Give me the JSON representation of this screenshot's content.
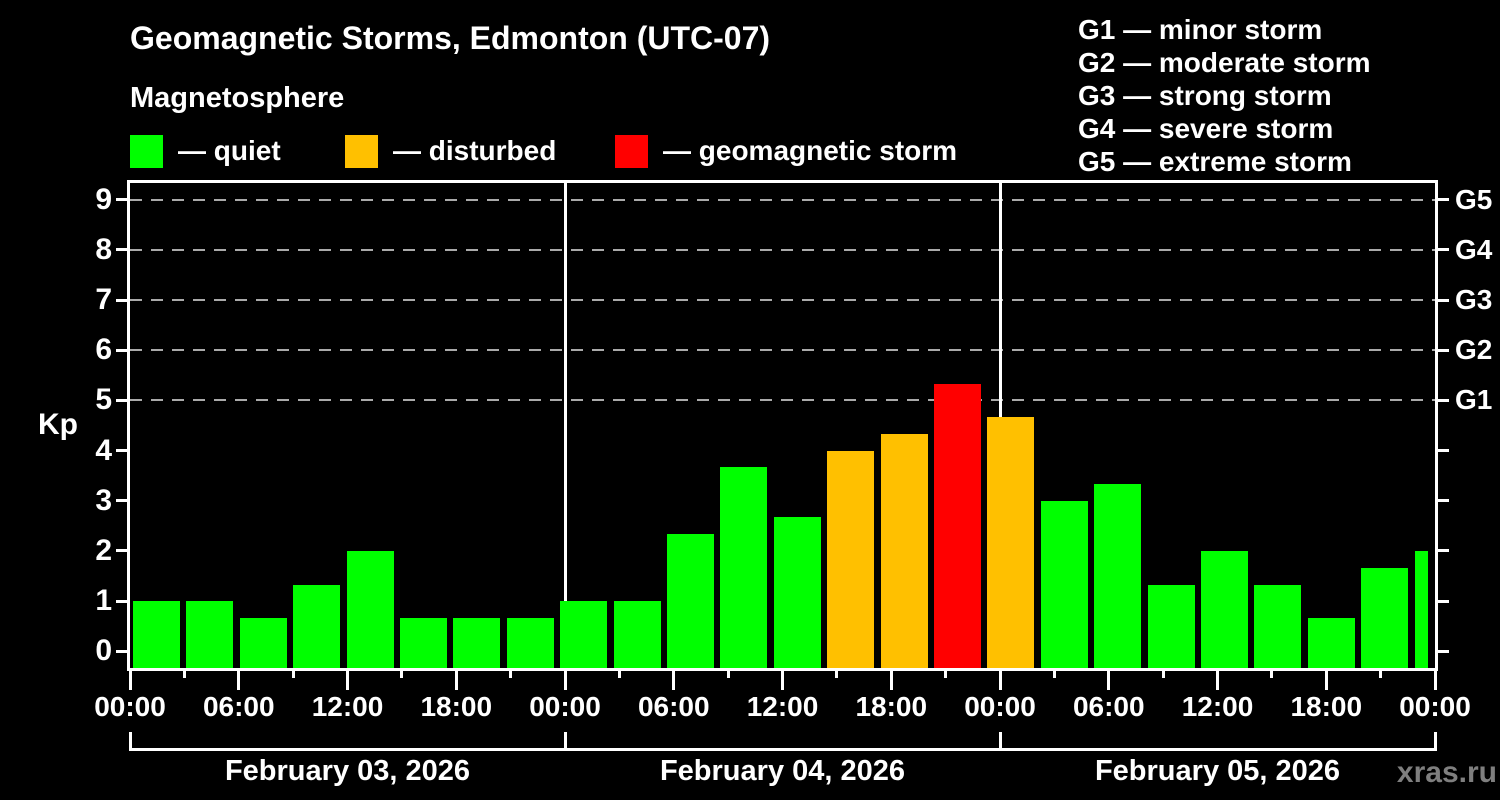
{
  "header": {
    "title": "Geomagnetic Storms, Edmonton (UTC-07)",
    "subtitle": "Magnetosphere"
  },
  "legend": {
    "items": [
      {
        "label": "— quiet",
        "status": "quiet",
        "color": "#00FF00"
      },
      {
        "label": "— disturbed",
        "status": "disturbed",
        "color": "#FFC000"
      },
      {
        "label": "— geomagnetic storm",
        "status": "storm",
        "color": "#FF0000"
      }
    ]
  },
  "storm_scale_legend": {
    "items": [
      "G1 — minor storm",
      "G2 — moderate storm",
      "G3 — strong storm",
      "G4 — severe storm",
      "G5 — extreme storm"
    ]
  },
  "watermark": "xras.ru",
  "chart_data": {
    "type": "bar",
    "ylabel": "Kp",
    "ylim": [
      -0.333,
      9.333
    ],
    "yticks": [
      0,
      1,
      2,
      3,
      4,
      5,
      6,
      7,
      8,
      9
    ],
    "grid_dashed_at_kp": [
      5,
      6,
      7,
      8,
      9
    ],
    "right_axis_labels": [
      {
        "label": "G1",
        "kp": 5
      },
      {
        "label": "G2",
        "kp": 6
      },
      {
        "label": "G3",
        "kp": 7
      },
      {
        "label": "G4",
        "kp": 8
      },
      {
        "label": "G5",
        "kp": 9
      }
    ],
    "hours_per_bar": 3,
    "x_hour_labels": [
      "00:00",
      "06:00",
      "12:00",
      "18:00",
      "00:00",
      "06:00",
      "12:00",
      "18:00",
      "00:00",
      "06:00",
      "12:00",
      "18:00",
      "00:00"
    ],
    "days": [
      {
        "date": "February 03, 2026",
        "kp_values": [
          1.0,
          1.0,
          0.67,
          1.33,
          2.0,
          0.67,
          0.67,
          0.67
        ]
      },
      {
        "date": "February 04, 2026",
        "kp_values": [
          1.0,
          1.0,
          2.33,
          3.67,
          2.67,
          4.0,
          4.33,
          5.33
        ]
      },
      {
        "date": "February 05, 2026",
        "kp_values": [
          4.67,
          3.0,
          3.33,
          1.33,
          2.0,
          1.33,
          0.67,
          1.67
        ]
      }
    ],
    "next_day_partial_bar_kp": 2.0,
    "status_thresholds": {
      "disturbed_min_kp": 4.0,
      "storm_min_kp": 5.0
    },
    "status_colors": {
      "quiet": "#00FF00",
      "disturbed": "#FFC000",
      "storm": "#FF0000"
    }
  }
}
